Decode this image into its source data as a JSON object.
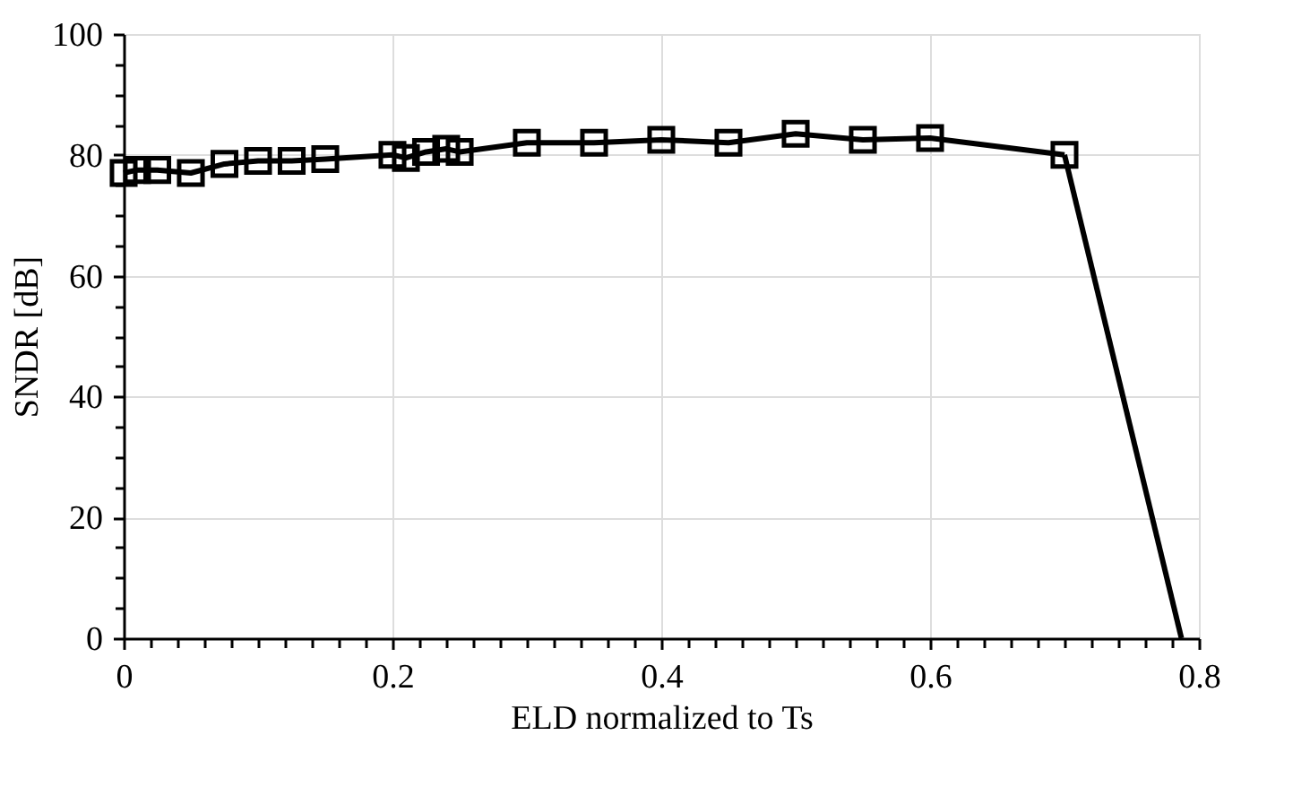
{
  "chart_data": {
    "type": "line",
    "xlabel": "ELD normalized to Ts",
    "ylabel": "SNDR [dB]",
    "x": [
      0,
      0.01,
      0.025,
      0.05,
      0.075,
      0.1,
      0.125,
      0.15,
      0.2,
      0.21,
      0.225,
      0.24,
      0.25,
      0.3,
      0.35,
      0.4,
      0.45,
      0.5,
      0.55,
      0.6,
      0.7
    ],
    "series": [
      {
        "color": "#000000",
        "marker": "square",
        "values": [
          77,
          77.5,
          77.5,
          77,
          78.5,
          79,
          79,
          79.3,
          80,
          79.5,
          80.5,
          81,
          80.5,
          82,
          82,
          82.5,
          82,
          83.5,
          82.5,
          82.8,
          80
        ]
      },
      {
        "color": "#000000",
        "marker": "none",
        "x": [
          0.7,
          0.787
        ],
        "values": [
          80,
          0
        ]
      }
    ],
    "xlim": [
      0,
      0.8
    ],
    "ylim": [
      0,
      100
    ],
    "xticks": [
      0,
      {
        "value": 0.02,
        "label": null
      },
      {
        "value": 0.04,
        "label": null
      },
      {
        "value": 0.06,
        "label": null
      },
      {
        "value": 0.08,
        "label": null
      },
      {
        "value": 0.1,
        "label": null
      },
      {
        "value": 0.12,
        "label": null
      },
      {
        "value": 0.14,
        "label": null
      },
      {
        "value": 0.16,
        "label": null
      },
      {
        "value": 0.18,
        "label": null
      },
      0.2,
      {
        "value": 0.22,
        "label": null
      },
      {
        "value": 0.24,
        "label": null
      },
      {
        "value": 0.26,
        "label": null
      },
      {
        "value": 0.28,
        "label": null
      },
      {
        "value": 0.3,
        "label": null
      },
      {
        "value": 0.32,
        "label": null
      },
      {
        "value": 0.34,
        "label": null
      },
      {
        "value": 0.36,
        "label": null
      },
      {
        "value": 0.38,
        "label": null
      },
      0.4,
      {
        "value": 0.42,
        "label": null
      },
      {
        "value": 0.44,
        "label": null
      },
      {
        "value": 0.46,
        "label": null
      },
      {
        "value": 0.48,
        "label": null
      },
      {
        "value": 0.5,
        "label": null
      },
      {
        "value": 0.52,
        "label": null
      },
      {
        "value": 0.54,
        "label": null
      },
      {
        "value": 0.56,
        "label": null
      },
      {
        "value": 0.58,
        "label": null
      },
      0.6,
      {
        "value": 0.62,
        "label": null
      },
      {
        "value": 0.64,
        "label": null
      },
      {
        "value": 0.66,
        "label": null
      },
      {
        "value": 0.68,
        "label": null
      },
      {
        "value": 0.7,
        "label": null
      },
      {
        "value": 0.72,
        "label": null
      },
      {
        "value": 0.74,
        "label": null
      },
      {
        "value": 0.76,
        "label": null
      },
      {
        "value": 0.78,
        "label": null
      },
      0.8
    ],
    "yticks": [
      0,
      {
        "value": 5,
        "label": null
      },
      {
        "value": 10,
        "label": null
      },
      {
        "value": 15,
        "label": null
      },
      20,
      {
        "value": 25,
        "label": null
      },
      {
        "value": 30,
        "label": null
      },
      {
        "value": 35,
        "label": null
      },
      40,
      {
        "value": 45,
        "label": null
      },
      {
        "value": 50,
        "label": null
      },
      {
        "value": 55,
        "label": null
      },
      60,
      {
        "value": 65,
        "label": null
      },
      {
        "value": 70,
        "label": null
      },
      {
        "value": 75,
        "label": null
      },
      80,
      {
        "value": 85,
        "label": null
      },
      {
        "value": 90,
        "label": null
      },
      {
        "value": 95,
        "label": null
      },
      100
    ],
    "grid": true,
    "line_style": "solid"
  }
}
